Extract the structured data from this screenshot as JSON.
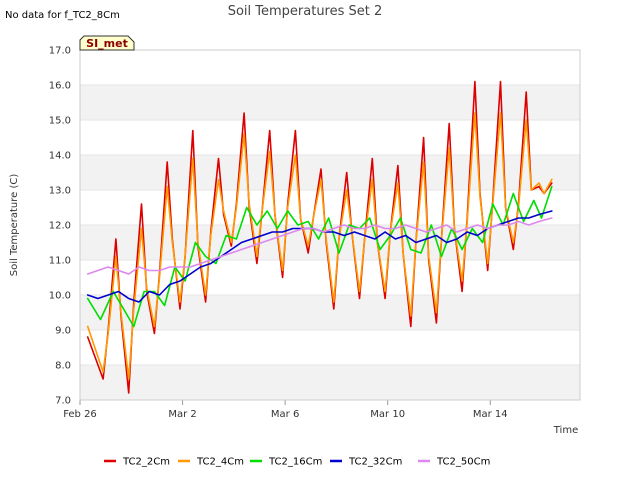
{
  "note": "No data for f_TC2_8Cm",
  "badge": {
    "label": "SI_met",
    "fill": "#ffffcc",
    "text_color": "#8b0000"
  },
  "chart_data": {
    "type": "line",
    "title": "Soil Temperatures Set 2",
    "xlabel": "Time",
    "ylabel": "Soil Temperature (C)",
    "x_unit": "date",
    "xlim": [
      "Feb 26",
      "Mar 17 12:00"
    ],
    "ylim": [
      7.0,
      17.0
    ],
    "y_ticks": [
      "7.0",
      "8.0",
      "9.0",
      "10.0",
      "11.0",
      "12.0",
      "13.0",
      "14.0",
      "15.0",
      "16.0",
      "17.0"
    ],
    "x_ticks": [
      {
        "label": "Feb 26",
        "day": 0
      },
      {
        "label": "Mar 2",
        "day": 4
      },
      {
        "label": "Mar 6",
        "day": 8
      },
      {
        "label": "Mar 10",
        "day": 12
      },
      {
        "label": "Mar 14",
        "day": 16
      }
    ],
    "grid": "horizontal bands",
    "legend_position": "bottom",
    "series": [
      {
        "name": "TC2_2Cm",
        "color": "#dd0000",
        "x": [
          0.3,
          0.9,
          1.1,
          1.4,
          1.6,
          1.9,
          2.1,
          2.4,
          2.6,
          2.9,
          3.1,
          3.4,
          3.6,
          3.9,
          4.1,
          4.4,
          4.6,
          4.9,
          5.1,
          5.4,
          5.6,
          5.9,
          6.1,
          6.4,
          6.6,
          6.9,
          7.1,
          7.4,
          7.6,
          7.9,
          8.1,
          8.4,
          8.6,
          8.9,
          9.1,
          9.4,
          9.6,
          9.9,
          10.1,
          10.4,
          10.6,
          10.9,
          11.1,
          11.4,
          11.6,
          11.9,
          12.1,
          12.4,
          12.6,
          12.9,
          13.1,
          13.4,
          13.6,
          13.9,
          14.1,
          14.4,
          14.6,
          14.9,
          15.1,
          15.4,
          15.6,
          15.9,
          16.1,
          16.4,
          16.6,
          16.9,
          17.1,
          17.4,
          17.6,
          17.9,
          18.1,
          18.4
        ],
        "y": [
          8.8,
          7.6,
          9.0,
          11.6,
          9.4,
          7.2,
          9.8,
          12.6,
          10.1,
          8.9,
          10.6,
          13.8,
          11.6,
          9.6,
          11.1,
          14.7,
          11.4,
          9.8,
          11.8,
          13.9,
          12.3,
          11.4,
          12.6,
          15.2,
          12.5,
          10.9,
          12.4,
          14.7,
          12.3,
          10.5,
          12.6,
          14.7,
          12.2,
          11.2,
          12.2,
          13.6,
          11.5,
          9.6,
          11.6,
          13.5,
          11.8,
          9.9,
          11.6,
          13.9,
          11.5,
          9.9,
          11.8,
          13.7,
          11.2,
          9.1,
          11.5,
          14.5,
          11.0,
          9.2,
          11.6,
          14.9,
          11.9,
          10.1,
          12.2,
          16.1,
          12.9,
          10.7,
          12.7,
          16.1,
          12.5,
          11.3,
          12.6,
          15.8,
          13.0,
          13.1,
          12.9,
          13.2
        ]
      },
      {
        "name": "TC2_4Cm",
        "color": "#ff9900",
        "x": [
          0.3,
          0.9,
          1.1,
          1.4,
          1.6,
          1.9,
          2.1,
          2.4,
          2.6,
          2.9,
          3.1,
          3.4,
          3.6,
          3.9,
          4.1,
          4.4,
          4.6,
          4.9,
          5.1,
          5.4,
          5.6,
          5.9,
          6.1,
          6.4,
          6.6,
          6.9,
          7.1,
          7.4,
          7.6,
          7.9,
          8.1,
          8.4,
          8.6,
          8.9,
          9.1,
          9.4,
          9.6,
          9.9,
          10.1,
          10.4,
          10.6,
          10.9,
          11.1,
          11.4,
          11.6,
          11.9,
          12.1,
          12.4,
          12.6,
          12.9,
          13.1,
          13.4,
          13.6,
          13.9,
          14.1,
          14.4,
          14.6,
          14.9,
          15.1,
          15.4,
          15.6,
          15.9,
          16.1,
          16.4,
          16.6,
          16.9,
          17.1,
          17.4,
          17.6,
          17.9,
          18.1,
          18.4
        ],
        "y": [
          9.1,
          7.8,
          8.9,
          11.1,
          9.5,
          7.6,
          9.6,
          11.9,
          10.2,
          9.1,
          10.5,
          13.1,
          11.5,
          9.8,
          11.1,
          13.9,
          11.5,
          10.0,
          11.7,
          13.3,
          12.4,
          11.5,
          12.5,
          14.6,
          12.6,
          11.1,
          12.4,
          14.1,
          12.3,
          10.7,
          12.5,
          14.0,
          12.2,
          11.4,
          12.2,
          13.3,
          11.6,
          9.8,
          11.6,
          13.0,
          11.8,
          10.1,
          11.6,
          13.3,
          11.5,
          10.1,
          11.8,
          13.2,
          11.2,
          9.4,
          11.5,
          13.8,
          11.1,
          9.5,
          11.6,
          14.2,
          11.9,
          10.4,
          12.1,
          15.2,
          12.8,
          10.9,
          12.6,
          15.2,
          12.5,
          11.5,
          12.5,
          15.0,
          13.0,
          13.2,
          12.9,
          13.3
        ]
      },
      {
        "name": "TC2_16Cm",
        "color": "#00dd00",
        "x": [
          0.3,
          0.8,
          1.3,
          1.7,
          2.1,
          2.5,
          2.9,
          3.3,
          3.7,
          4.1,
          4.5,
          4.9,
          5.3,
          5.7,
          6.1,
          6.5,
          6.9,
          7.3,
          7.7,
          8.1,
          8.5,
          8.9,
          9.3,
          9.7,
          10.1,
          10.5,
          10.9,
          11.3,
          11.7,
          12.1,
          12.5,
          12.9,
          13.3,
          13.7,
          14.1,
          14.5,
          14.9,
          15.3,
          15.7,
          16.1,
          16.5,
          16.9,
          17.3,
          17.7,
          18.0,
          18.4
        ],
        "y": [
          9.9,
          9.3,
          10.1,
          9.6,
          9.1,
          10.1,
          10.1,
          9.7,
          10.8,
          10.4,
          11.5,
          11.1,
          10.9,
          11.7,
          11.6,
          12.5,
          12.0,
          12.4,
          11.9,
          12.4,
          12.0,
          12.1,
          11.6,
          12.2,
          11.2,
          12.0,
          11.9,
          12.2,
          11.3,
          11.7,
          12.2,
          11.3,
          11.2,
          12.0,
          11.1,
          11.9,
          11.3,
          11.9,
          11.5,
          12.6,
          12.0,
          12.9,
          12.1,
          12.7,
          12.2,
          13.1
        ]
      },
      {
        "name": "TC2_32Cm",
        "color": "#0000cc",
        "x": [
          0.3,
          0.7,
          1.1,
          1.5,
          1.9,
          2.3,
          2.7,
          3.1,
          3.5,
          3.9,
          4.3,
          4.7,
          5.1,
          5.5,
          5.9,
          6.3,
          6.7,
          7.1,
          7.5,
          7.9,
          8.3,
          8.7,
          9.1,
          9.5,
          9.9,
          10.3,
          10.7,
          11.1,
          11.5,
          11.9,
          12.3,
          12.7,
          13.1,
          13.5,
          13.9,
          14.3,
          14.7,
          15.1,
          15.5,
          15.9,
          16.3,
          16.7,
          17.1,
          17.5,
          17.9,
          18.4
        ],
        "y": [
          10.0,
          9.9,
          10.0,
          10.1,
          9.9,
          9.8,
          10.1,
          10.0,
          10.3,
          10.4,
          10.6,
          10.8,
          10.9,
          11.1,
          11.3,
          11.5,
          11.6,
          11.7,
          11.8,
          11.8,
          11.9,
          11.9,
          11.9,
          11.8,
          11.8,
          11.7,
          11.8,
          11.7,
          11.6,
          11.8,
          11.6,
          11.7,
          11.5,
          11.6,
          11.7,
          11.5,
          11.6,
          11.8,
          11.7,
          11.9,
          12.0,
          12.1,
          12.2,
          12.2,
          12.3,
          12.4
        ]
      },
      {
        "name": "TC2_50Cm",
        "color": "#dd88ee",
        "x": [
          0.3,
          0.7,
          1.1,
          1.5,
          1.9,
          2.3,
          2.7,
          3.1,
          3.5,
          3.9,
          4.3,
          4.7,
          5.1,
          5.5,
          5.9,
          6.3,
          6.7,
          7.1,
          7.5,
          7.9,
          8.3,
          8.7,
          9.1,
          9.5,
          9.9,
          10.3,
          10.7,
          11.1,
          11.5,
          11.9,
          12.3,
          12.7,
          13.1,
          13.5,
          13.9,
          14.3,
          14.7,
          15.1,
          15.5,
          15.9,
          16.3,
          16.7,
          17.1,
          17.5,
          17.9,
          18.4
        ],
        "y": [
          10.6,
          10.7,
          10.8,
          10.7,
          10.6,
          10.8,
          10.7,
          10.7,
          10.8,
          10.8,
          10.8,
          10.9,
          11.0,
          11.1,
          11.2,
          11.3,
          11.4,
          11.5,
          11.6,
          11.7,
          11.8,
          11.9,
          11.9,
          11.8,
          11.9,
          12.0,
          11.9,
          11.9,
          12.0,
          11.9,
          11.9,
          12.0,
          11.9,
          11.8,
          11.9,
          12.0,
          11.8,
          11.9,
          12.0,
          11.9,
          12.0,
          12.0,
          12.1,
          12.0,
          12.1,
          12.2
        ]
      }
    ]
  }
}
